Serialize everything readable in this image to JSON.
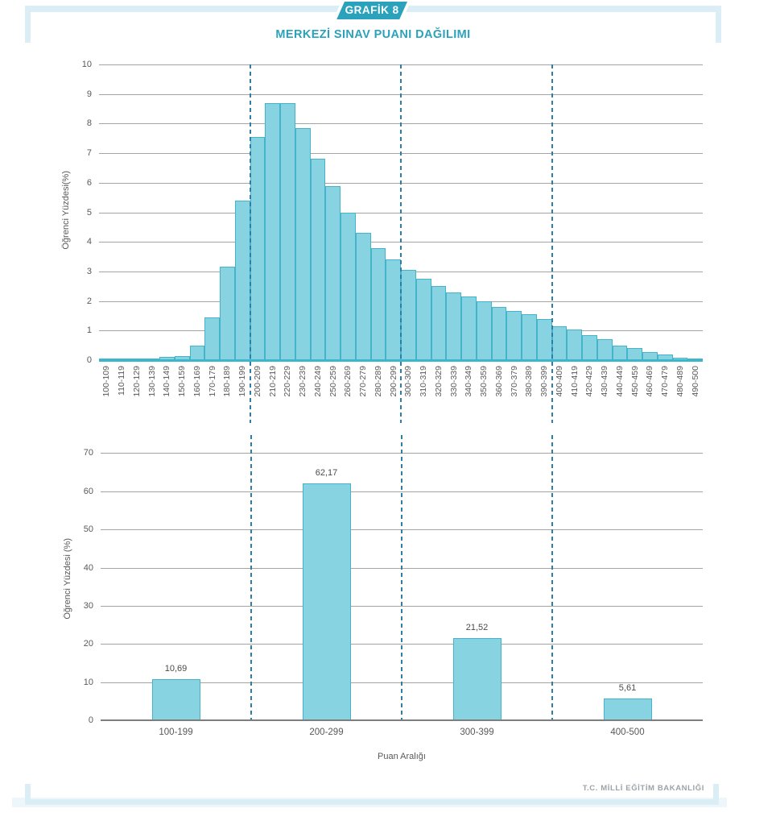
{
  "header": {
    "badge": "GRAFİK 8",
    "title": "MERKEZİ SINAV PUANI DAĞILIMI"
  },
  "footer": {
    "text": "T.C. MİLLİ EĞİTİM BAKANLIĞI"
  },
  "colors": {
    "accent_teal": "#2aa2bb",
    "bar_fill": "#87d3e2",
    "bar_border": "#44b4cb",
    "axis_line_teal": "#3bb6cc",
    "dashed_line": "#2e7ea6",
    "gridline": "#a4a4a4",
    "tick_text": "#58595b",
    "frame_blue": "#dceef5"
  },
  "chart_data": [
    {
      "type": "bar",
      "title": "",
      "xlabel": "",
      "ylabel": "Öğrenci Yüzdesi(%)",
      "ylim": [
        0,
        10
      ],
      "yticks": [
        "0",
        "1",
        "2",
        "3",
        "4",
        "5",
        "6",
        "7",
        "8",
        "9",
        "10"
      ],
      "grid": true,
      "dashed_boundaries_scores": [
        "200",
        "300",
        "400"
      ],
      "categories": [
        "100-109",
        "110-119",
        "120-129",
        "130-139",
        "140-149",
        "150-159",
        "160-169",
        "170-179",
        "180-189",
        "190-199",
        "200-209",
        "210-219",
        "220-229",
        "230-239",
        "240-249",
        "250-259",
        "260-269",
        "270-279",
        "280-289",
        "290-299",
        "300-309",
        "310-319",
        "320-329",
        "330-339",
        "340-349",
        "350-359",
        "360-369",
        "370-379",
        "380-389",
        "390-399",
        "400-409",
        "410-419",
        "420-429",
        "430-439",
        "440-449",
        "450-459",
        "460-469",
        "470-479",
        "480-489",
        "490-500"
      ],
      "values": [
        0.05,
        0.05,
        0.05,
        0.05,
        0.1,
        0.15,
        0.5,
        1.45,
        3.15,
        5.4,
        7.55,
        8.7,
        8.7,
        7.85,
        6.8,
        5.9,
        5.0,
        4.3,
        3.8,
        3.4,
        3.05,
        2.75,
        2.5,
        2.3,
        2.15,
        2.0,
        1.8,
        1.65,
        1.55,
        1.4,
        1.15,
        1.05,
        0.85,
        0.7,
        0.5,
        0.4,
        0.27,
        0.2,
        0.08,
        0.05
      ]
    },
    {
      "type": "bar",
      "title": "",
      "xlabel": "Puan Aralığı",
      "ylabel": "Öğrenci Yüzdesi (%)",
      "ylim": [
        0,
        70
      ],
      "yticks": [
        "0",
        "10",
        "20",
        "30",
        "40",
        "50",
        "60",
        "70"
      ],
      "grid": true,
      "dashed_boundaries_scores": [
        "200",
        "300",
        "400"
      ],
      "categories": [
        "100-199",
        "200-299",
        "300-399",
        "400-500"
      ],
      "values": [
        10.69,
        62.17,
        21.52,
        5.61
      ],
      "value_labels": [
        "10,69",
        "62,17",
        "21,52",
        "5,61"
      ]
    }
  ]
}
